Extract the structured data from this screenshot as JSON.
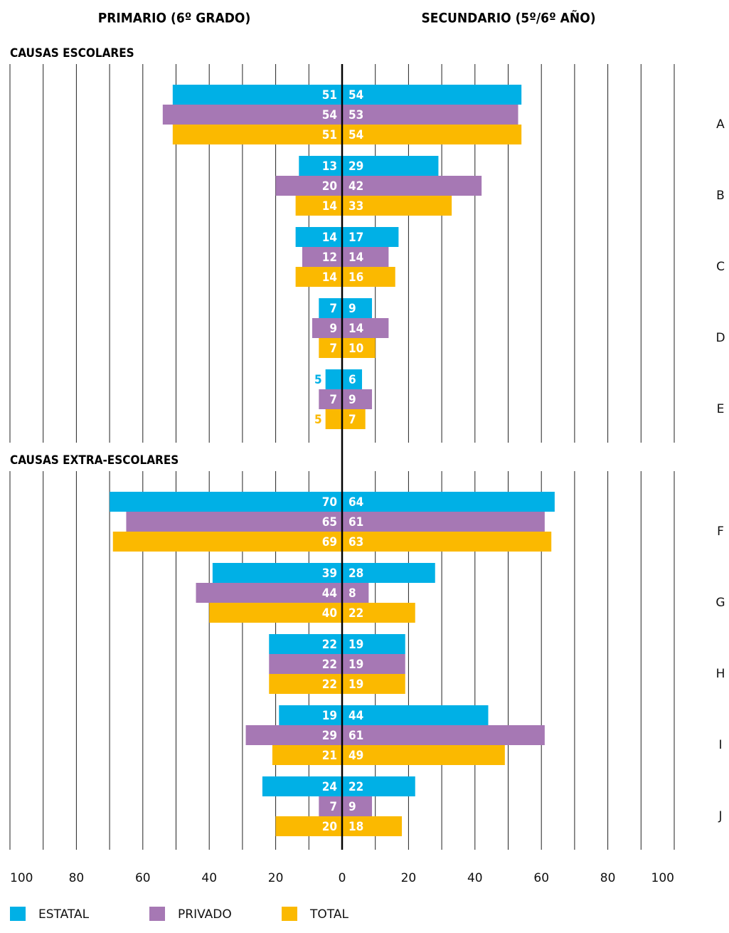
{
  "chart_data": {
    "type": "butterfly",
    "left_title": "PRIMARIO (6º GRADO)",
    "right_title": "SECUNDARIO (5º/6º AÑO)",
    "groups": [
      {
        "label": "CAUSAS ESCOLARES",
        "categories": [
          "A",
          "B",
          "C",
          "D",
          "E"
        ]
      },
      {
        "label": "CAUSAS EXTRA-ESCOLARES",
        "categories": [
          "F",
          "G",
          "H",
          "I",
          "J"
        ]
      }
    ],
    "series": [
      {
        "name": "ESTATAL",
        "color": "#00b0e6",
        "values_left": [
          51,
          13,
          14,
          7,
          5,
          70,
          39,
          22,
          19,
          24
        ],
        "values_right": [
          54,
          29,
          17,
          9,
          6,
          64,
          28,
          19,
          44,
          22
        ]
      },
      {
        "name": "PRIVADO",
        "color": "#a678b4",
        "values_left": [
          54,
          20,
          12,
          9,
          7,
          65,
          44,
          22,
          29,
          7
        ],
        "values_right": [
          53,
          42,
          14,
          14,
          9,
          61,
          8,
          19,
          61,
          9
        ]
      },
      {
        "name": "TOTAL",
        "color": "#fbb900",
        "values_left": [
          51,
          14,
          14,
          7,
          5,
          69,
          40,
          22,
          21,
          20
        ],
        "values_right": [
          54,
          33,
          16,
          10,
          7,
          63,
          22,
          19,
          49,
          18
        ]
      }
    ],
    "xlim": [
      0,
      100
    ],
    "xticks": [
      0,
      20,
      40,
      60,
      80,
      100
    ],
    "xticks_minor": [
      10,
      30,
      50,
      70,
      90
    ],
    "grid": true
  }
}
